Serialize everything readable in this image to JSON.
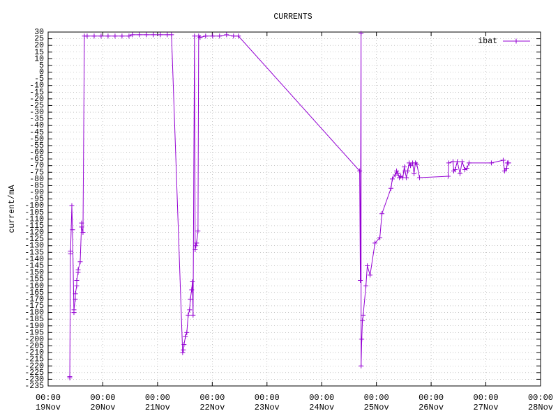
{
  "chart_data": {
    "type": "line",
    "title": "CURRENTS",
    "y_label": "current/mA",
    "x": [
      "19Nov 09:29",
      "19Nov 09:30",
      "19Nov 09:47",
      "19Nov 09:48",
      "19Nov 10:24",
      "19Nov 10:42",
      "19Nov 11:19",
      "19Nov 11:20",
      "19Nov 11:55",
      "19Nov 11:56",
      "19Nov 12:32",
      "19Nov 12:33",
      "19Nov 13:09",
      "19Nov 13:10",
      "19Nov 14:04",
      "19Nov 14:40",
      "19Nov 14:41",
      "19Nov 15:17",
      "19Nov 15:54",
      "19Nov 17:07",
      "19Nov 20:11",
      "19Nov 23:14",
      "20Nov 02:17",
      "20Nov 05:21",
      "20Nov 08:24",
      "20Nov 11:28",
      "20Nov 12:59",
      "20Nov 16:03",
      "20Nov 19:06",
      "20Nov 22:10",
      "21Nov 01:13",
      "21Nov 04:16",
      "21Nov 06:07",
      "21Nov 11:00",
      "21Nov 11:18",
      "21Nov 11:36",
      "21Nov 12:13",
      "21Nov 12:50",
      "21Nov 13:26",
      "21Nov 14:03",
      "21Nov 14:22",
      "21Nov 14:58",
      "21Nov 15:17",
      "21Nov 15:35",
      "21Nov 16:12",
      "21Nov 16:30",
      "21Nov 16:48",
      "21Nov 17:07",
      "21Nov 17:44",
      "21Nov 18:02",
      "21Nov 18:39",
      "21Nov 21:05",
      "22Nov 00:09",
      "22Nov 03:12",
      "22Nov 06:16",
      "22Nov 09:19",
      "22Nov 11:28",
      "24Nov 16:39",
      "24Nov 16:57",
      "24Nov 17:16",
      "24Nov 17:17",
      "24Nov 17:34",
      "24Nov 17:52",
      "24Nov 18:11",
      "24Nov 19:24",
      "24Nov 20:00",
      "24Nov 21:13",
      "24Nov 23:22",
      "25Nov 01:30",
      "25Nov 02:25",
      "25Nov 06:23",
      "25Nov 06:59",
      "25Nov 08:13",
      "25Nov 08:51",
      "25Nov 09:28",
      "25Nov 10:04",
      "25Nov 10:41",
      "25Nov 11:36",
      "25Nov 12:13",
      "25Nov 12:31",
      "25Nov 13:08",
      "25Nov 13:45",
      "25Nov 14:21",
      "25Nov 14:58",
      "25Nov 15:53",
      "25Nov 16:30",
      "25Nov 17:06",
      "25Nov 17:43",
      "25Nov 18:56",
      "26Nov 07:28",
      "26Nov 07:46",
      "26Nov 09:36",
      "26Nov 09:55",
      "26Nov 10:32",
      "26Nov 11:27",
      "26Nov 12:40",
      "26Nov 13:35",
      "26Nov 14:48",
      "26Nov 15:43",
      "26Nov 16:38",
      "27Nov 02:25",
      "27Nov 07:37",
      "27Nov 08:13",
      "27Nov 09:08",
      "27Nov 09:26",
      "27Nov 10:03"
    ],
    "series": [
      {
        "name": "ibat",
        "color": "#9400d3",
        "values": [
          -228,
          -229,
          -134,
          -136,
          -100,
          -118,
          -180,
          -178,
          -170,
          -166,
          -160,
          -156,
          -150,
          -148,
          -142,
          -113,
          -116,
          -120,
          27,
          27,
          27,
          27,
          27,
          27,
          27,
          27,
          28,
          28,
          28,
          28,
          28,
          28,
          28,
          -210,
          -208,
          -204,
          -198,
          -195,
          -182,
          -178,
          -170,
          -163,
          -157,
          -182,
          27,
          -133,
          -130,
          -128,
          -119,
          27,
          26,
          27,
          27,
          27,
          28,
          27,
          27,
          -74,
          -156,
          29,
          -220,
          -200,
          -186,
          -182,
          -160,
          -145,
          -152,
          -128,
          -124,
          -106,
          -87,
          -80,
          -77,
          -74,
          -76,
          -79,
          -78,
          -79,
          -71,
          -74,
          -79,
          -74,
          -68,
          -70,
          -68,
          -76,
          -68,
          -69,
          -79,
          -78,
          -68,
          -67,
          -74,
          -73,
          -67,
          -76,
          -67,
          -73,
          -72,
          -68,
          -68,
          -66,
          -74,
          -72,
          -68,
          -68
        ]
      }
    ],
    "xlim": [
      "19Nov 00:00",
      "28Nov 00:00"
    ],
    "xticks": [
      {
        "value": "19Nov 00:00",
        "label": "00:00\n19Nov"
      },
      {
        "value": "20Nov 00:00",
        "label": "00:00\n20Nov"
      },
      {
        "value": "21Nov 00:00",
        "label": "00:00\n21Nov"
      },
      {
        "value": "22Nov 00:00",
        "label": "00:00\n22Nov"
      },
      {
        "value": "23Nov 00:00",
        "label": "00:00\n23Nov"
      },
      {
        "value": "24Nov 00:00",
        "label": "00:00\n24Nov"
      },
      {
        "value": "25Nov 00:00",
        "label": "00:00\n25Nov"
      },
      {
        "value": "26Nov 00:00",
        "label": "00:00\n26Nov"
      },
      {
        "value": "27Nov 00:00",
        "label": "00:00\n27Nov"
      },
      {
        "value": "28Nov 00:00",
        "label": "00:00\n28Nov"
      }
    ],
    "ylim": [
      -235,
      30
    ],
    "yticks": [
      30,
      25,
      20,
      15,
      10,
      5,
      0,
      -5,
      -10,
      -15,
      -20,
      -25,
      -30,
      -35,
      -40,
      -45,
      -50,
      -55,
      -60,
      -65,
      -70,
      -75,
      -80,
      -85,
      -90,
      -95,
      -100,
      -105,
      -110,
      -115,
      -120,
      -125,
      -130,
      -135,
      -140,
      -145,
      -150,
      -155,
      -160,
      -165,
      -170,
      -175,
      -180,
      -185,
      -190,
      -195,
      -200,
      -205,
      -210,
      -215,
      -220,
      -225,
      -230,
      -235
    ],
    "grid": true,
    "legend": "top-right"
  }
}
